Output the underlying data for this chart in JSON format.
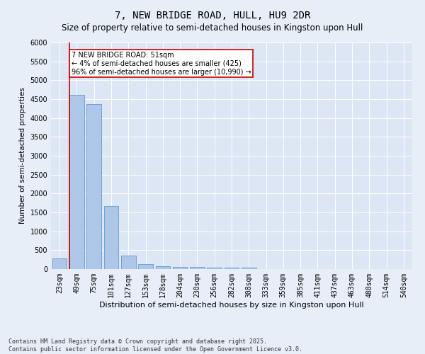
{
  "title": "7, NEW BRIDGE ROAD, HULL, HU9 2DR",
  "subtitle": "Size of property relative to semi-detached houses in Kingston upon Hull",
  "xlabel": "Distribution of semi-detached houses by size in Kingston upon Hull",
  "ylabel": "Number of semi-detached properties",
  "categories": [
    "23sqm",
    "49sqm",
    "75sqm",
    "101sqm",
    "127sqm",
    "153sqm",
    "178sqm",
    "204sqm",
    "230sqm",
    "256sqm",
    "282sqm",
    "308sqm",
    "333sqm",
    "359sqm",
    "385sqm",
    "411sqm",
    "437sqm",
    "463sqm",
    "488sqm",
    "514sqm",
    "540sqm"
  ],
  "values": [
    290,
    4620,
    4360,
    1660,
    350,
    130,
    80,
    65,
    55,
    45,
    40,
    35,
    0,
    0,
    0,
    0,
    0,
    0,
    0,
    0,
    0
  ],
  "bar_color": "#aec6e8",
  "bar_edgecolor": "#5b9bd5",
  "annotation_text": "7 NEW BRIDGE ROAD: 51sqm\n← 4% of semi-detached houses are smaller (425)\n96% of semi-detached houses are larger (10,990) →",
  "annotation_box_facecolor": "#ffffff",
  "annotation_box_edgecolor": "#cc0000",
  "vline_color": "#cc0000",
  "vline_x_index": 1,
  "ylim": [
    0,
    6000
  ],
  "yticks": [
    0,
    500,
    1000,
    1500,
    2000,
    2500,
    3000,
    3500,
    4000,
    4500,
    5000,
    5500,
    6000
  ],
  "bg_color": "#e8eef7",
  "plot_bg_color": "#dce6f5",
  "footer": "Contains HM Land Registry data © Crown copyright and database right 2025.\nContains public sector information licensed under the Open Government Licence v3.0.",
  "title_fontsize": 10,
  "subtitle_fontsize": 8.5,
  "xlabel_fontsize": 8,
  "ylabel_fontsize": 7.5,
  "tick_fontsize": 7,
  "footer_fontsize": 6,
  "grid_color": "#ffffff",
  "annotation_fontsize": 7
}
